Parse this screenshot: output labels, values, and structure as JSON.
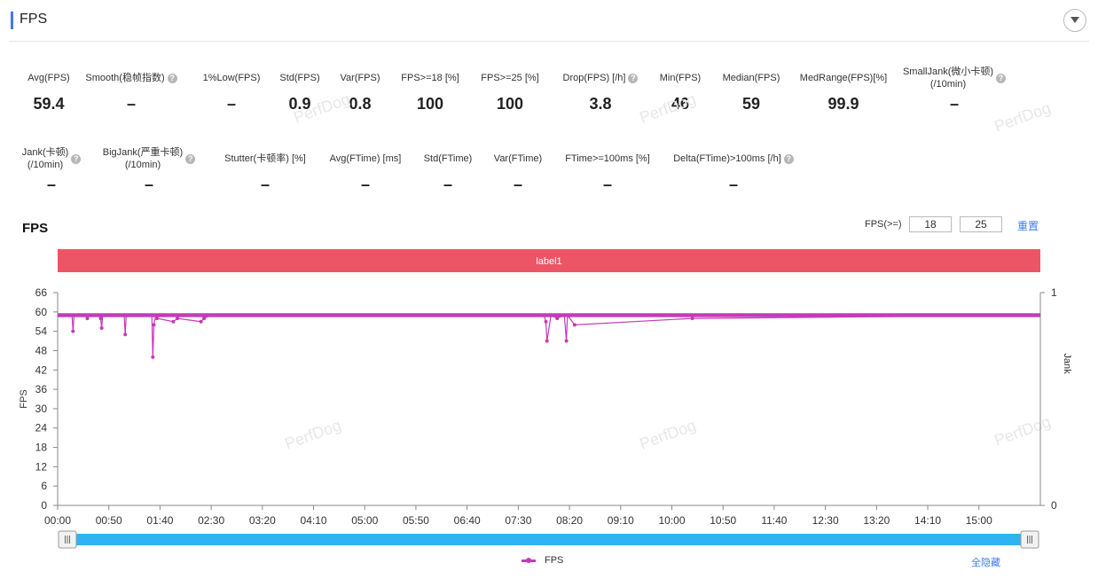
{
  "header": {
    "title": "FPS",
    "collapse_icon": "chevron-down-icon"
  },
  "metrics_row1": [
    {
      "label": "Avg(FPS)",
      "value": "59.4",
      "help": false
    },
    {
      "label": "Smooth(稳帧指数)",
      "value": "–",
      "help": true
    },
    {
      "label": "1%Low(FPS)",
      "value": "–",
      "help": false
    },
    {
      "label": "Std(FPS)",
      "value": "0.9",
      "help": false
    },
    {
      "label": "Var(FPS)",
      "value": "0.8",
      "help": false
    },
    {
      "label": "FPS>=18 [%]",
      "value": "100",
      "help": false
    },
    {
      "label": "FPS>=25 [%]",
      "value": "100",
      "help": false
    },
    {
      "label": "Drop(FPS) [/h]",
      "value": "3.8",
      "help": true
    },
    {
      "label": "Min(FPS)",
      "value": "46",
      "help": false
    },
    {
      "label": "Median(FPS)",
      "value": "59",
      "help": false
    },
    {
      "label": "MedRange(FPS)[%]",
      "value": "99.9",
      "help": false
    },
    {
      "label": "SmallJank(微小卡顿)\n(/10min)",
      "value": "–",
      "help": true
    }
  ],
  "metrics_row2": [
    {
      "label": "Jank(卡顿)\n(/10min)",
      "value": "–",
      "help": true
    },
    {
      "label": "BigJank(严重卡顿)\n(/10min)",
      "value": "–",
      "help": true
    },
    {
      "label": "Stutter(卡顿率) [%]",
      "value": "–",
      "help": false
    },
    {
      "label": "Avg(FTime) [ms]",
      "value": "–",
      "help": false
    },
    {
      "label": "Std(FTime)",
      "value": "–",
      "help": false
    },
    {
      "label": "Var(FTime)",
      "value": "–",
      "help": false
    },
    {
      "label": "FTime>=100ms [%]",
      "value": "–",
      "help": false
    },
    {
      "label": "Delta(FTime)>100ms [/h]",
      "value": "–",
      "help": true
    }
  ],
  "watermark_text": "PerfDog",
  "chart_section": {
    "title": "FPS",
    "threshold_label": "FPS(>=)",
    "threshold_1": "18",
    "threshold_2": "25",
    "reset_label": "重置",
    "label_bar": "label1",
    "legend_label": "FPS",
    "hide_all_label": "全隐藏"
  },
  "colors": {
    "accent": "#3d7be8",
    "label_bar": "#ec5565",
    "series": "#c53ab8",
    "slider": "#2eb4f0"
  },
  "chart_data": {
    "type": "line",
    "title": "FPS",
    "ylabel": "FPS",
    "y2label": "Jank",
    "ylim": [
      0,
      66
    ],
    "yticks": [
      0,
      6,
      12,
      18,
      24,
      30,
      36,
      42,
      48,
      54,
      60,
      66
    ],
    "y2lim": [
      0,
      1
    ],
    "y2ticks": [
      0,
      1
    ],
    "xlim_seconds": [
      0,
      960
    ],
    "xticks": [
      "00:00",
      "00:50",
      "01:40",
      "02:30",
      "03:20",
      "04:10",
      "05:00",
      "05:50",
      "06:40",
      "07:30",
      "08:20",
      "09:10",
      "10:00",
      "10:50",
      "11:40",
      "12:30",
      "13:20",
      "14:10",
      "15:00"
    ],
    "series": [
      {
        "name": "FPS",
        "baseline": 59,
        "x_seconds": [
          0,
          14,
          15,
          16,
          28,
          29,
          30,
          40,
          42,
          43,
          44,
          65,
          66,
          67,
          92,
          93,
          94,
          96,
          97,
          113,
          117,
          140,
          143,
          150,
          475,
          477,
          478,
          482,
          488,
          495,
          497,
          498,
          505,
          620,
          960
        ],
        "values": [
          59,
          59,
          54,
          59,
          59,
          58,
          59,
          59,
          58,
          55,
          59,
          59,
          53,
          59,
          59,
          46,
          56,
          59,
          58,
          57,
          58,
          57,
          58,
          59,
          59,
          57,
          51,
          59,
          58,
          59,
          51,
          59,
          56,
          58,
          59
        ]
      }
    ],
    "grid": false,
    "legend": "bottom-center"
  }
}
